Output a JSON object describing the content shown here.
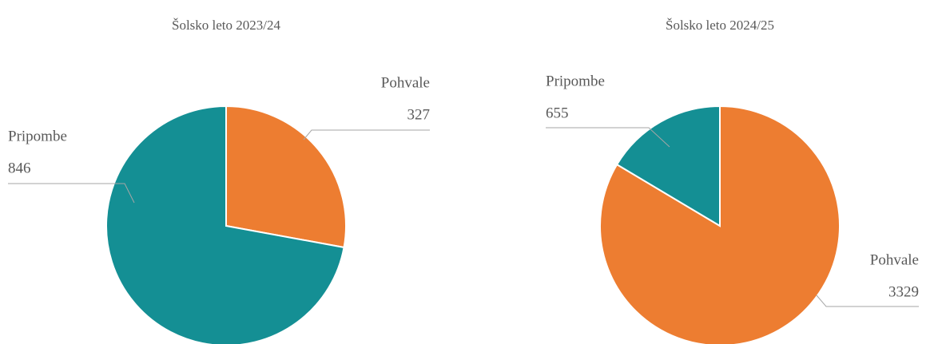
{
  "chart_data": [
    {
      "type": "pie",
      "title": "Šolsko leto 2023/24",
      "categories": [
        "Pohvale",
        "Pripombe"
      ],
      "values": [
        327,
        846
      ],
      "colors": [
        "#ED7D31",
        "#148F94"
      ]
    },
    {
      "type": "pie",
      "title": "Šolsko leto 2024/25",
      "categories": [
        "Pohvale",
        "Pripombe"
      ],
      "values": [
        3329,
        655
      ],
      "colors": [
        "#ED7D31",
        "#148F94"
      ]
    }
  ]
}
